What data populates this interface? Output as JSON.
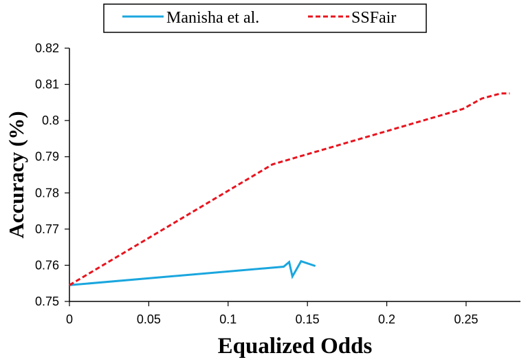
{
  "chart_data": {
    "type": "line",
    "title": "",
    "xlabel": "Equalized Odds",
    "ylabel": "Accuracy (%)",
    "xlim": [
      0,
      0.28
    ],
    "ylim": [
      0.75,
      0.82
    ],
    "xticks": [
      "0",
      "0.05",
      "0.1",
      "0.15",
      "0.2",
      "0.25"
    ],
    "xtick_values": [
      0,
      0.05,
      0.1,
      0.15,
      0.2,
      0.25
    ],
    "yticks": [
      "0.75",
      "0.76",
      "0.77",
      "0.78",
      "0.79",
      "0.8",
      "0.81",
      "0.82"
    ],
    "ytick_values": [
      0.75,
      0.76,
      0.77,
      0.78,
      0.79,
      0.8,
      0.81,
      0.82
    ],
    "grid": false,
    "legend_position": "top",
    "series": [
      {
        "name": "Manisha et al.",
        "color": "#1aa6de",
        "style": "solid",
        "x": [
          0.0,
          0.135,
          0.1385,
          0.1405,
          0.1425,
          0.146,
          0.155
        ],
        "y": [
          0.7545,
          0.7596,
          0.7609,
          0.7569,
          0.7584,
          0.7611,
          0.7598
        ]
      },
      {
        "name": "SSFair",
        "color": "#e8141e",
        "style": "dashed",
        "x": [
          0.0,
          0.128,
          0.248,
          0.26,
          0.272,
          0.2775
        ],
        "y": [
          0.7545,
          0.7879,
          0.8032,
          0.8061,
          0.8075,
          0.8075
        ]
      }
    ]
  }
}
